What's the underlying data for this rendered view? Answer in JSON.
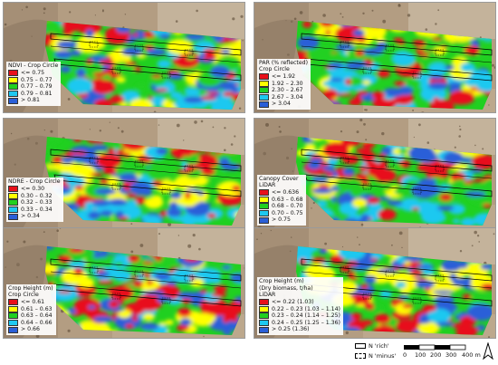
{
  "panels": [
    {
      "id": "ndvi",
      "title": "NDVI - Crop Circle",
      "classes": [
        {
          "label": "<= 0.75",
          "color": "#e8101a"
        },
        {
          "label": "0.75 – 0.77",
          "color": "#ffff00"
        },
        {
          "label": "0.77 – 0.79",
          "color": "#20d020"
        },
        {
          "label": "0.79 – 0.81",
          "color": "#1ec8f0"
        },
        {
          "label": "> 0.81",
          "color": "#2a5fd8"
        }
      ]
    },
    {
      "id": "par",
      "title": "PAR (% reflected)",
      "subtitle": "Crop Circle",
      "classes": [
        {
          "label": "<= 1.92",
          "color": "#e8101a"
        },
        {
          "label": "1.92 – 2.30",
          "color": "#ffff00"
        },
        {
          "label": "2.30 – 2.67",
          "color": "#20d020"
        },
        {
          "label": "2.67 – 3.04",
          "color": "#1ec8f0"
        },
        {
          "label": "> 3.04",
          "color": "#2a5fd8"
        }
      ]
    },
    {
      "id": "ndre",
      "title": "NDRE - Crop Circle",
      "classes": [
        {
          "label": "<= 0.30",
          "color": "#e8101a"
        },
        {
          "label": "0.30 – 0.32",
          "color": "#ffff00"
        },
        {
          "label": "0.32 – 0.33",
          "color": "#20d020"
        },
        {
          "label": "0.33 – 0.34",
          "color": "#1ec8f0"
        },
        {
          "label": "> 0.34",
          "color": "#2a5fd8"
        }
      ]
    },
    {
      "id": "canopy",
      "title": "Canopy Cover",
      "subtitle": "LiDAR",
      "classes": [
        {
          "label": "<= 0.636",
          "color": "#e8101a"
        },
        {
          "label": "0.63 – 0.68",
          "color": "#ffff00"
        },
        {
          "label": "0.68 – 0.70",
          "color": "#20d020"
        },
        {
          "label": "0.70 – 0.75",
          "color": "#1ec8f0"
        },
        {
          "label": "> 0.75",
          "color": "#2a5fd8"
        }
      ]
    },
    {
      "id": "height_cc",
      "title": "Crop Height (m)",
      "subtitle": "Crop Circle",
      "classes": [
        {
          "label": "<= 0.61",
          "color": "#e8101a"
        },
        {
          "label": "0.61 – 0.63",
          "color": "#ffff00"
        },
        {
          "label": "0.63 – 0.64",
          "color": "#20d020"
        },
        {
          "label": "0.64 – 0.66",
          "color": "#1ec8f0"
        },
        {
          "label": "> 0.66",
          "color": "#2a5fd8"
        }
      ]
    },
    {
      "id": "height_lidar",
      "title": "Crop Height (m)",
      "subtitle": "(Dry biomass, t/ha)",
      "subtitle2": "LiDAR",
      "classes": [
        {
          "label": "<= 0.22 (1.03)",
          "color": "#e8101a"
        },
        {
          "label": "0.22 – 0.23 (1.03 – 1.14)",
          "color": "#ffff00"
        },
        {
          "label": "0.23 – 0.24 (1.14 – 1.25)",
          "color": "#20d020"
        },
        {
          "label": "0.24 – 0.25 (1.25 – 1.36)",
          "color": "#1ec8f0"
        },
        {
          "label": "> 0.25 (1.36)",
          "color": "#2a5fd8"
        }
      ]
    }
  ],
  "key": {
    "rich_label": "N 'rich'",
    "minus_label": "N 'minus'"
  },
  "scale": {
    "ticks": [
      "0",
      "100",
      "200",
      "300",
      "400 m"
    ]
  },
  "north_label": "north-arrow-icon"
}
